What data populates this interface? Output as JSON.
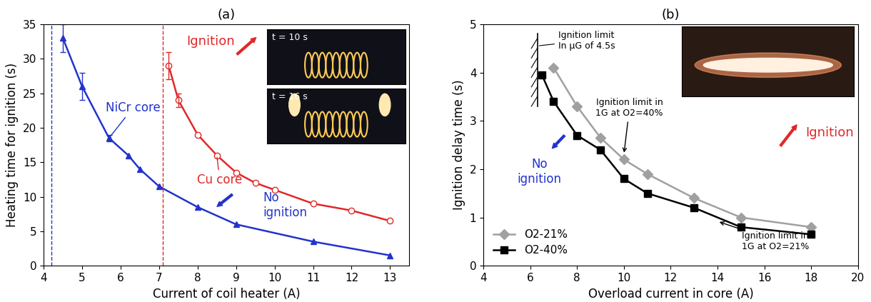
{
  "chart_data": [
    {
      "type": "line",
      "title": "(a)",
      "x_label": "Current of coil heater (A)",
      "y_label": "Heating time for ignition (s)",
      "xlim": [
        4,
        13.5
      ],
      "ylim": [
        0,
        35
      ],
      "xticks": [
        4,
        5,
        6,
        7,
        8,
        9,
        10,
        11,
        12,
        13
      ],
      "yticks": [
        0,
        5,
        10,
        15,
        20,
        25,
        30,
        35
      ],
      "series": [
        {
          "name": "NiCr core",
          "color": "#2233cc",
          "marker": "triangle",
          "x": [
            4.5,
            5,
            5.7,
            6.2,
            6.5,
            7,
            8,
            9,
            11,
            13
          ],
          "values": [
            33,
            26,
            18.5,
            16,
            14,
            11.5,
            8.5,
            6,
            3.5,
            1.5
          ],
          "error": [
            2,
            2,
            0.5,
            null,
            null,
            null,
            null,
            null,
            null,
            null
          ]
        },
        {
          "name": "Cu core",
          "color": "#e02828",
          "marker": "circle_open",
          "x": [
            7.25,
            7.5,
            8,
            8.5,
            9,
            9.5,
            10,
            11,
            12,
            13
          ],
          "values": [
            29,
            24,
            19,
            16,
            13.5,
            12,
            11,
            9,
            8,
            6.5
          ],
          "error": [
            2,
            1,
            null,
            null,
            null,
            null,
            null,
            null,
            null,
            null
          ]
        }
      ],
      "limit_lines": [
        {
          "x": 4.2,
          "color": "#2233cc"
        },
        {
          "x": 7.1,
          "color": "#e02828"
        }
      ],
      "annotations": {
        "ignition": "Ignition",
        "no_ignition": "No\nignition"
      },
      "photo_captions": [
        "t = 10 s",
        "t = 16 s"
      ]
    },
    {
      "type": "line",
      "title": "(b)",
      "x_label": "Overload current in core (A)",
      "y_label": "Ignition delay time (s)",
      "xlim": [
        4,
        20
      ],
      "ylim": [
        0,
        5
      ],
      "xticks": [
        4,
        6,
        8,
        10,
        12,
        14,
        16,
        18,
        20
      ],
      "yticks": [
        0,
        1,
        2,
        3,
        4,
        5
      ],
      "legend": "lower left",
      "series": [
        {
          "name": "O2-21%",
          "color": "#a0a0a0",
          "marker": "diamond",
          "x": [
            7,
            8,
            9,
            10,
            11,
            13,
            15,
            18
          ],
          "values": [
            4.1,
            3.3,
            2.65,
            2.2,
            1.9,
            1.4,
            1.0,
            0.8
          ]
        },
        {
          "name": "O2-40%",
          "color": "#000000",
          "marker": "square",
          "x": [
            6.5,
            7,
            8,
            9,
            10,
            11,
            13,
            15,
            18
          ],
          "values": [
            3.95,
            3.4,
            2.7,
            2.4,
            1.8,
            1.5,
            1.2,
            0.8,
            0.65
          ]
        }
      ],
      "annotations": {
        "ignition": "Ignition",
        "no_ignition": "No\nignition",
        "limit_ug": "Ignition limit\nIn μG of 4.5s",
        "limit_1g_40": "Ignition limit in\n1G at O2=40%",
        "limit_1g_21": "Ignition limit in\n1G at O2=21%"
      }
    }
  ]
}
